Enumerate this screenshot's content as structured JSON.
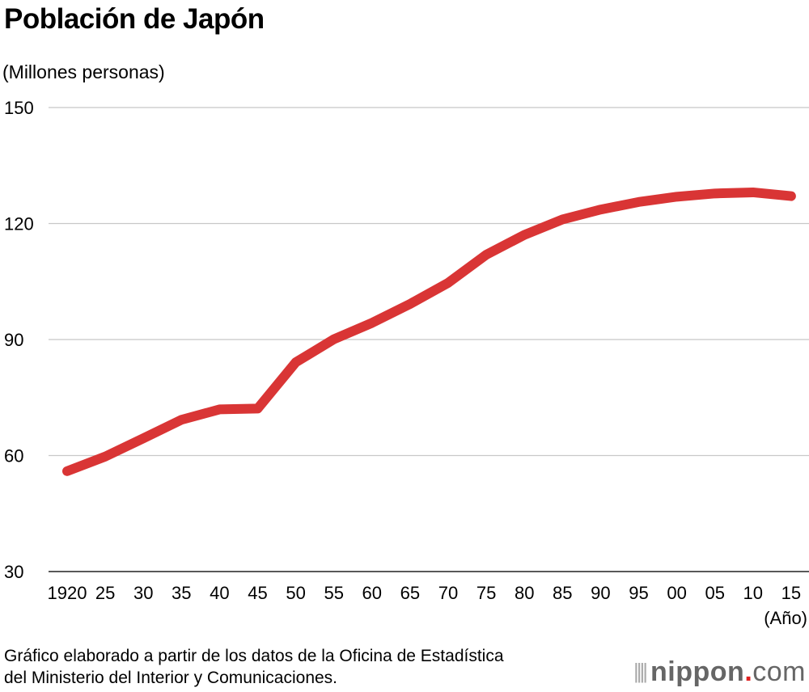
{
  "chart_data": {
    "type": "line",
    "title": "Población de Japón",
    "ylabel": "(Millones personas)",
    "xlabel": "(Año)",
    "ylim": [
      30,
      150
    ],
    "yticks": [
      30,
      60,
      90,
      120,
      150
    ],
    "grid": true,
    "categories": [
      "1920",
      "25",
      "30",
      "35",
      "40",
      "45",
      "50",
      "55",
      "60",
      "65",
      "70",
      "75",
      "80",
      "85",
      "90",
      "95",
      "00",
      "05",
      "10",
      "15"
    ],
    "series": [
      {
        "name": "Población",
        "color": "#d93535",
        "values": [
          55.96,
          59.74,
          64.45,
          69.25,
          71.93,
          72.15,
          84.11,
          90.08,
          94.3,
          99.21,
          104.67,
          111.94,
          117.06,
          121.05,
          123.61,
          125.57,
          126.93,
          127.77,
          128.06,
          127.09
        ]
      }
    ],
    "source": [
      "Gráfico elaborado a partir de los datos de la Oficina de Estadística",
      "del Ministerio del Interior y Comunicaciones."
    ]
  },
  "logo": {
    "name": "nippon",
    "dot": ".",
    "tld": "com",
    "bars": "||||"
  }
}
